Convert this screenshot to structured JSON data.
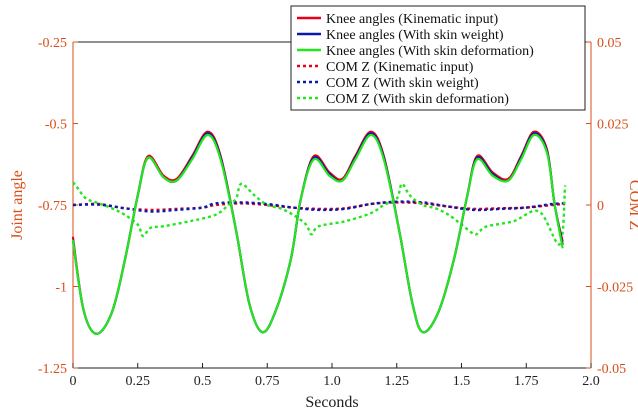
{
  "chart_data": {
    "type": "line",
    "xlabel": "Seconds",
    "ylabel_left": "Joint angle",
    "ylabel_right": "COM Z",
    "xlim": [
      0,
      2.0
    ],
    "ylim_left": [
      -1.25,
      -0.25
    ],
    "ylim_right": [
      -0.05,
      0.05
    ],
    "x_ticks": [
      "0",
      "0.25",
      "0.5",
      "0.75",
      "1.0",
      "1.25",
      "1.5",
      "1.75",
      "2.0"
    ],
    "y_left_ticks": [
      "-0.25",
      "-0.5",
      "-0.75",
      "-1",
      "-1.25"
    ],
    "y_right_ticks": [
      "0.05",
      "0.025",
      "0",
      "-0.025",
      "-0.05"
    ],
    "grid": false,
    "legend_position": "top-right",
    "colors": {
      "left_axis": "#d94e1a",
      "right_axis": "#d94e1a",
      "left_axis_label": "#d94e1a",
      "right_axis_label": "#d94e1a"
    },
    "series": [
      {
        "name": "Knee angles (Kinematic input)",
        "axis": "left",
        "color": "#e8001a",
        "style": "solid",
        "x": [
          0.0,
          0.04,
          0.09,
          0.15,
          0.2,
          0.25,
          0.29,
          0.35,
          0.4,
          0.46,
          0.52,
          0.57,
          0.63,
          0.68,
          0.73,
          0.78,
          0.84,
          0.88,
          0.93,
          0.99,
          1.04,
          1.09,
          1.15,
          1.2,
          1.26,
          1.31,
          1.35,
          1.41,
          1.47,
          1.52,
          1.56,
          1.62,
          1.68,
          1.73,
          1.78,
          1.83,
          1.86,
          1.89
        ],
        "y": [
          -0.85,
          -1.07,
          -1.145,
          -1.08,
          -0.92,
          -0.72,
          -0.6,
          -0.66,
          -0.67,
          -0.6,
          -0.525,
          -0.6,
          -0.83,
          -1.05,
          -1.14,
          -1.08,
          -0.92,
          -0.73,
          -0.6,
          -0.65,
          -0.67,
          -0.6,
          -0.525,
          -0.6,
          -0.83,
          -1.05,
          -1.14,
          -1.08,
          -0.92,
          -0.73,
          -0.6,
          -0.65,
          -0.67,
          -0.6,
          -0.525,
          -0.58,
          -0.75,
          -0.86
        ]
      },
      {
        "name": "Knee angles (With skin weight)",
        "axis": "left",
        "color": "#0a1aa8",
        "style": "solid",
        "x": [
          0.0,
          0.04,
          0.09,
          0.15,
          0.2,
          0.25,
          0.29,
          0.35,
          0.4,
          0.46,
          0.52,
          0.57,
          0.63,
          0.68,
          0.73,
          0.78,
          0.84,
          0.88,
          0.93,
          0.99,
          1.04,
          1.09,
          1.15,
          1.2,
          1.26,
          1.31,
          1.35,
          1.41,
          1.47,
          1.52,
          1.56,
          1.62,
          1.68,
          1.73,
          1.78,
          1.83,
          1.86,
          1.89
        ],
        "y": [
          -0.86,
          -1.07,
          -1.145,
          -1.08,
          -0.92,
          -0.72,
          -0.605,
          -0.665,
          -0.675,
          -0.605,
          -0.53,
          -0.605,
          -0.83,
          -1.05,
          -1.14,
          -1.08,
          -0.92,
          -0.73,
          -0.605,
          -0.655,
          -0.675,
          -0.605,
          -0.53,
          -0.605,
          -0.83,
          -1.05,
          -1.14,
          -1.08,
          -0.92,
          -0.73,
          -0.605,
          -0.655,
          -0.675,
          -0.605,
          -0.53,
          -0.585,
          -0.75,
          -0.87
        ]
      },
      {
        "name": "Knee angles (With skin deformation)",
        "axis": "left",
        "color": "#22e61e",
        "style": "solid",
        "x": [
          0.0,
          0.04,
          0.09,
          0.15,
          0.2,
          0.25,
          0.29,
          0.35,
          0.4,
          0.46,
          0.52,
          0.57,
          0.63,
          0.68,
          0.73,
          0.78,
          0.84,
          0.88,
          0.93,
          0.99,
          1.04,
          1.09,
          1.15,
          1.2,
          1.26,
          1.31,
          1.35,
          1.41,
          1.47,
          1.52,
          1.56,
          1.62,
          1.68,
          1.73,
          1.78,
          1.83,
          1.86,
          1.89
        ],
        "y": [
          -0.86,
          -1.07,
          -1.145,
          -1.08,
          -0.92,
          -0.72,
          -0.605,
          -0.665,
          -0.675,
          -0.61,
          -0.535,
          -0.61,
          -0.83,
          -1.05,
          -1.14,
          -1.08,
          -0.92,
          -0.73,
          -0.61,
          -0.66,
          -0.675,
          -0.61,
          -0.535,
          -0.61,
          -0.83,
          -1.05,
          -1.14,
          -1.08,
          -0.92,
          -0.73,
          -0.61,
          -0.66,
          -0.675,
          -0.61,
          -0.535,
          -0.59,
          -0.75,
          -0.88
        ]
      },
      {
        "name": "COM Z (Kinematic input)",
        "axis": "right",
        "color": "#e8001a",
        "style": "dotted",
        "x": [
          0.0,
          0.1,
          0.2,
          0.3,
          0.4,
          0.5,
          0.55,
          0.65,
          0.75,
          0.85,
          0.95,
          1.05,
          1.15,
          1.25,
          1.35,
          1.45,
          1.55,
          1.65,
          1.75,
          1.85,
          1.9
        ],
        "y": [
          0.0,
          0.0003,
          -0.001,
          -0.0015,
          -0.0012,
          -0.0008,
          0.0,
          0.0005,
          0.0,
          -0.0008,
          -0.0012,
          -0.001,
          0.0003,
          0.0008,
          0.0005,
          -0.0005,
          -0.0012,
          -0.001,
          -0.0008,
          0.0,
          0.0003
        ]
      },
      {
        "name": "COM Z (With skin weight)",
        "axis": "right",
        "color": "#0a1aa8",
        "style": "dotted",
        "x": [
          0.0,
          0.1,
          0.2,
          0.3,
          0.4,
          0.5,
          0.55,
          0.65,
          0.75,
          0.85,
          0.95,
          1.05,
          1.15,
          1.25,
          1.35,
          1.45,
          1.55,
          1.65,
          1.75,
          1.85,
          1.9
        ],
        "y": [
          0.0,
          0.0001,
          -0.001,
          -0.002,
          -0.0015,
          -0.0008,
          0.0005,
          0.0008,
          0.0003,
          -0.0008,
          -0.0015,
          -0.0012,
          0.0003,
          0.001,
          0.0008,
          -0.0005,
          -0.0015,
          -0.0012,
          -0.0008,
          0.0003,
          0.0005
        ]
      },
      {
        "name": "COM Z (With skin deformation)",
        "axis": "right",
        "color": "#22e61e",
        "style": "dotted",
        "x": [
          0.0,
          0.02,
          0.05,
          0.1,
          0.15,
          0.2,
          0.25,
          0.27,
          0.3,
          0.35,
          0.45,
          0.55,
          0.6,
          0.63,
          0.65,
          0.7,
          0.75,
          0.8,
          0.85,
          0.9,
          0.92,
          0.95,
          1.05,
          1.15,
          1.2,
          1.25,
          1.27,
          1.3,
          1.35,
          1.4,
          1.45,
          1.5,
          1.55,
          1.57,
          1.6,
          1.7,
          1.8,
          1.88,
          1.9
        ],
        "y": [
          0.007,
          0.005,
          0.002,
          0.0005,
          -0.001,
          -0.003,
          -0.006,
          -0.0095,
          -0.007,
          -0.0065,
          -0.005,
          -0.003,
          0.0,
          0.002,
          0.0065,
          0.003,
          0.0,
          -0.001,
          -0.003,
          -0.006,
          -0.009,
          -0.0065,
          -0.005,
          -0.0025,
          0.0,
          0.002,
          0.0065,
          0.003,
          0.0,
          -0.001,
          -0.003,
          -0.006,
          -0.009,
          -0.008,
          -0.0065,
          -0.005,
          -0.002,
          -0.012,
          0.006
        ]
      }
    ]
  }
}
